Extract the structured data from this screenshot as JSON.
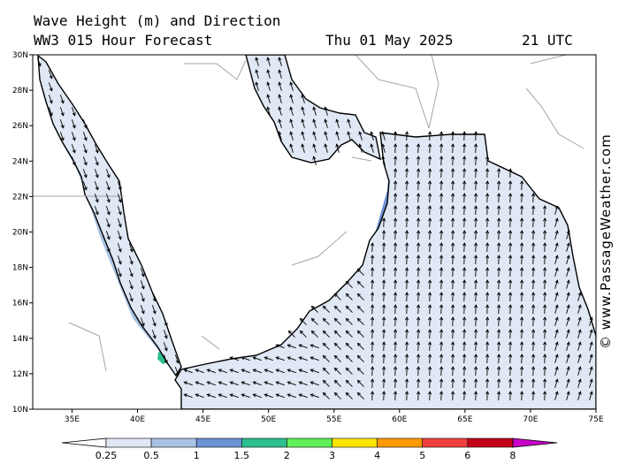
{
  "header": {
    "title": "Wave Height (m) and Direction",
    "model": "WW3 015 Hour Forecast",
    "date": "Thu 01 May 2025",
    "time": "21 UTC"
  },
  "watermark": "© www.PassageWeather.com",
  "map": {
    "region": "Red Sea, Gulf of Aden and Arabian Sea",
    "lon_range": [
      32,
      75
    ],
    "lat_range": [
      10,
      30
    ],
    "lon_ticks": [
      "35E",
      "40E",
      "45E",
      "50E",
      "55E",
      "60E",
      "65E",
      "70E",
      "75E"
    ],
    "lat_ticks": [
      "30N",
      "28N",
      "26N",
      "24N",
      "22N",
      "20N",
      "18N",
      "16N",
      "14N",
      "12N",
      "10N"
    ],
    "dominant_wave_direction": "north (south-west monsoon swell)",
    "max_wave_height_range_m": "1.5 - 2",
    "colors": {
      "land": "#ffffff",
      "sea_025_05": "#dfe8f4",
      "sea_05_1": "#a9c2e4",
      "sea_1_15": "#6b92d4",
      "sea_15_2": "#2ec08f",
      "coast": "#000000",
      "border": "#a6a6a6"
    }
  },
  "legend": {
    "labels": [
      "0.25",
      "0.5",
      "1",
      "1.5",
      "2",
      "3",
      "4",
      "5",
      "6",
      "8"
    ],
    "colors": [
      "#dfe8f4",
      "#a9c2e4",
      "#6b92d4",
      "#2ec08f",
      "#5ff05a",
      "#ffe600",
      "#ff9a00",
      "#ef4040",
      "#c10018",
      "#c800c8"
    ]
  }
}
